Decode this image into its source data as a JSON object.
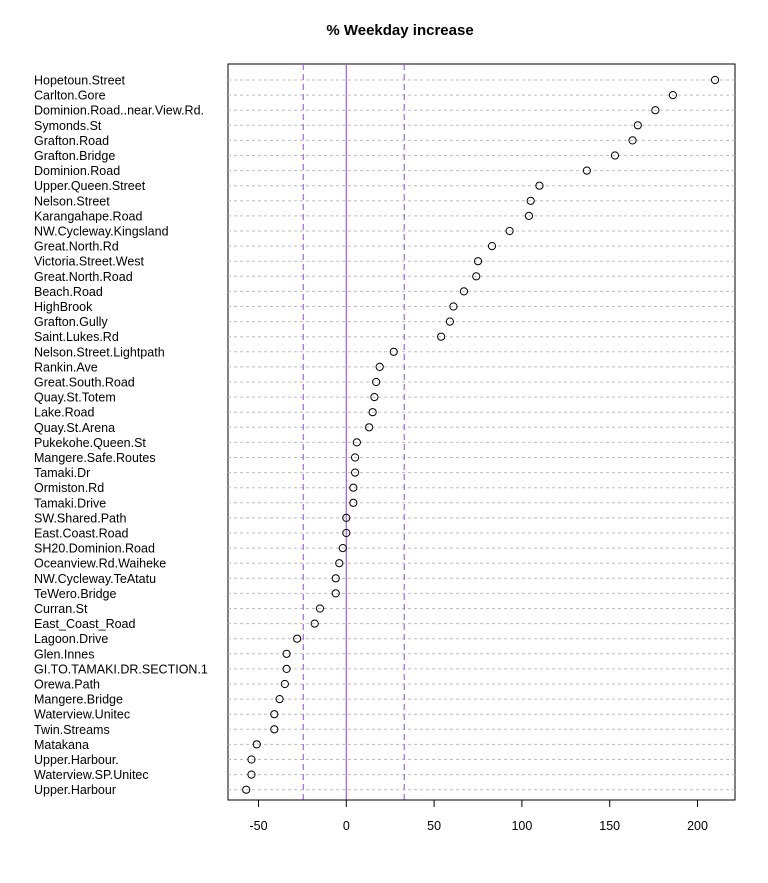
{
  "chart_data": {
    "type": "scatter",
    "title": "% Weekday increase",
    "xlabel": "",
    "ylabel": "",
    "xlim": [
      -68,
      222
    ],
    "xticks": [
      -50,
      0,
      50,
      100,
      150,
      200
    ],
    "tick_labels": [
      "-50",
      "0",
      "50",
      "100",
      "150",
      "200"
    ],
    "reference_lines": {
      "solid": 0,
      "dashed": [
        -24.5,
        33
      ],
      "color": "#a066e8"
    },
    "grid": "horizontal dotted",
    "categories": [
      "Hopetoun.Street",
      "Carlton.Gore",
      "Dominion.Road..near.View.Rd.",
      "Symonds.St",
      "Grafton.Road",
      "Grafton.Bridge",
      "Dominion.Road",
      "Upper.Queen.Street",
      "Nelson.Street",
      "Karangahape.Road",
      "NW.Cycleway.Kingsland",
      "Great.North.Rd",
      "Victoria.Street.West",
      "Great.North.Road",
      "Beach.Road",
      "HighBrook",
      "Grafton.Gully",
      "Saint.Lukes.Rd",
      "Nelson.Street.Lightpath",
      "Rankin.Ave",
      "Great.South.Road",
      "Quay.St.Totem",
      "Lake.Road",
      "Quay.St.Arena",
      "Pukekohe.Queen.St",
      "Mangere.Safe.Routes",
      "Tamaki.Dr",
      "Ormiston.Rd",
      "Tamaki.Drive",
      "SW.Shared.Path",
      "East.Coast.Road",
      "SH20.Dominion.Road",
      "Oceanview.Rd.Waiheke",
      "NW.Cycleway.TeAtatu",
      "TeWero.Bridge",
      "Curran.St",
      "East_Coast_Road",
      "Lagoon.Drive",
      "Glen.Innes",
      "GI.TO.TAMAKI.DR.SECTION.1",
      "Orewa.Path",
      "Mangere.Bridge",
      "Waterview.Unitec",
      "Twin.Streams",
      "Matakana",
      "Upper.Harbour.",
      "Waterview.SP.Unitec",
      "Upper.Harbour"
    ],
    "values": [
      210,
      186,
      176,
      166,
      163,
      153,
      137,
      110,
      105,
      104,
      93,
      83,
      75,
      74,
      67,
      61,
      59,
      54,
      27,
      19,
      17,
      16,
      15,
      13,
      6,
      5,
      5,
      4,
      4,
      0,
      0,
      -2,
      -4,
      -6,
      -6,
      -15,
      -18,
      -28,
      -34,
      -34,
      -35,
      -38,
      -41,
      -41,
      -51,
      -54,
      -54,
      -57
    ]
  }
}
